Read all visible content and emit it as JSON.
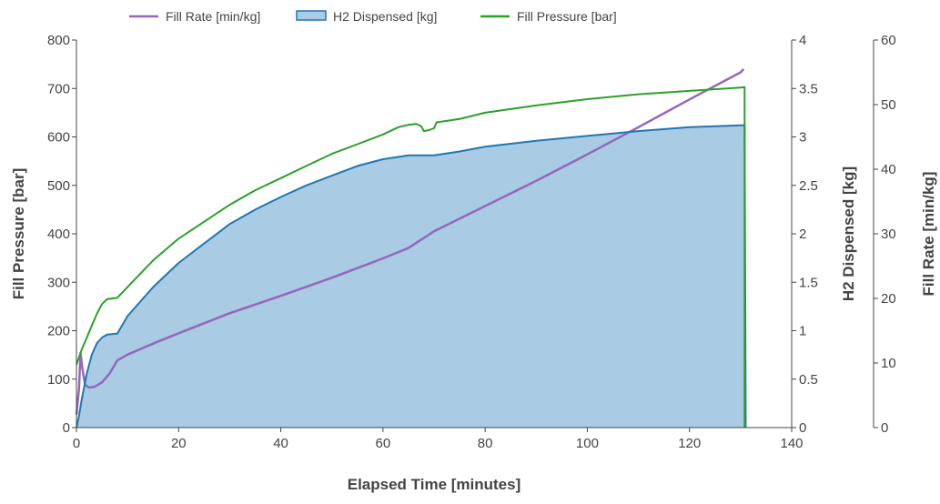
{
  "chart_data": {
    "type": "line",
    "title": "",
    "xlabel": "Elapsed Time [minutes]",
    "x_range": [
      0,
      140
    ],
    "x_ticks": [
      "0",
      "20",
      "40",
      "60",
      "80",
      "100",
      "120",
      "140"
    ],
    "x_tick_values": [
      0,
      20,
      40,
      60,
      80,
      100,
      120,
      140
    ],
    "grid": false,
    "legend_placement": "top",
    "axes": {
      "fill_pressure": {
        "label": "Fill Pressure [bar]",
        "side": "left",
        "range": [
          0,
          800
        ],
        "ticks": [
          "0",
          "100",
          "200",
          "300",
          "400",
          "500",
          "600",
          "700",
          "800"
        ],
        "tick_values": [
          0,
          100,
          200,
          300,
          400,
          500,
          600,
          700,
          800
        ]
      },
      "h2_dispensed": {
        "label": "H2 Dispensed [kg]",
        "side": "right",
        "range": [
          0,
          4
        ],
        "ticks": [
          "0",
          "0.5",
          "1",
          "1.5",
          "2",
          "2.5",
          "3",
          "3.5",
          "4"
        ],
        "tick_values": [
          0,
          0.5,
          1,
          1.5,
          2,
          2.5,
          3,
          3.5,
          4
        ]
      },
      "fill_rate": {
        "label": "Fill Rate [min/kg]",
        "side": "right-outer",
        "range": [
          0,
          60
        ],
        "ticks": [
          "0",
          "10",
          "20",
          "30",
          "40",
          "50",
          "60"
        ],
        "tick_values": [
          0,
          10,
          20,
          30,
          40,
          50,
          60
        ]
      }
    },
    "series": [
      {
        "name": "Fill Rate [min/kg]",
        "axis": "fill_rate",
        "style": "line",
        "color": "#9467bd",
        "points": [
          [
            0,
            2
          ],
          [
            0.5,
            6
          ],
          [
            0.8,
            11.5
          ],
          [
            1.2,
            9
          ],
          [
            1.7,
            6.6
          ],
          [
            2.5,
            6.2
          ],
          [
            3.5,
            6.3
          ],
          [
            5,
            7
          ],
          [
            6.5,
            8.4
          ],
          [
            8,
            10.4
          ],
          [
            10,
            11.3
          ],
          [
            15,
            13
          ],
          [
            20,
            14.6
          ],
          [
            30,
            17.7
          ],
          [
            40,
            20.4
          ],
          [
            50,
            23.2
          ],
          [
            60,
            26.2
          ],
          [
            65,
            27.8
          ],
          [
            70,
            30.4
          ],
          [
            80,
            34.3
          ],
          [
            90,
            38.2
          ],
          [
            100,
            42.3
          ],
          [
            110,
            46.5
          ],
          [
            120,
            50.8
          ],
          [
            130,
            55
          ],
          [
            130.6,
            55.5
          ]
        ]
      },
      {
        "name": "H2 Dispensed [kg]",
        "axis": "h2_dispensed",
        "style": "area",
        "color": "#1f77b4",
        "fill": "#a9cbe4",
        "points": [
          [
            0,
            0
          ],
          [
            0.5,
            0.12
          ],
          [
            1,
            0.28
          ],
          [
            2,
            0.55
          ],
          [
            3,
            0.75
          ],
          [
            4,
            0.87
          ],
          [
            5,
            0.93
          ],
          [
            6,
            0.96
          ],
          [
            8,
            0.97
          ],
          [
            10,
            1.15
          ],
          [
            15,
            1.45
          ],
          [
            20,
            1.7
          ],
          [
            25,
            1.9
          ],
          [
            30,
            2.1
          ],
          [
            35,
            2.25
          ],
          [
            40,
            2.38
          ],
          [
            45,
            2.5
          ],
          [
            50,
            2.6
          ],
          [
            55,
            2.7
          ],
          [
            60,
            2.77
          ],
          [
            65,
            2.81
          ],
          [
            68,
            2.81
          ],
          [
            70,
            2.81
          ],
          [
            75,
            2.85
          ],
          [
            80,
            2.9
          ],
          [
            90,
            2.96
          ],
          [
            100,
            3.01
          ],
          [
            110,
            3.06
          ],
          [
            120,
            3.1
          ],
          [
            130,
            3.12
          ],
          [
            130.8,
            3.12
          ],
          [
            131,
            0
          ]
        ]
      },
      {
        "name": "Fill Pressure [bar]",
        "axis": "fill_pressure",
        "style": "line",
        "color": "#2ca02c",
        "points": [
          [
            0,
            130
          ],
          [
            0.5,
            145
          ],
          [
            1,
            160
          ],
          [
            2,
            185
          ],
          [
            3,
            210
          ],
          [
            4,
            235
          ],
          [
            5,
            255
          ],
          [
            6,
            265
          ],
          [
            8,
            268
          ],
          [
            10,
            290
          ],
          [
            15,
            345
          ],
          [
            20,
            390
          ],
          [
            25,
            425
          ],
          [
            30,
            460
          ],
          [
            35,
            490
          ],
          [
            40,
            515
          ],
          [
            45,
            540
          ],
          [
            50,
            565
          ],
          [
            55,
            585
          ],
          [
            60,
            605
          ],
          [
            63,
            620
          ],
          [
            65,
            625
          ],
          [
            66.5,
            627
          ],
          [
            67.5,
            622
          ],
          [
            68,
            612
          ],
          [
            69,
            614
          ],
          [
            70,
            618
          ],
          [
            70.5,
            630
          ],
          [
            75,
            637
          ],
          [
            80,
            650
          ],
          [
            90,
            665
          ],
          [
            100,
            678
          ],
          [
            110,
            688
          ],
          [
            120,
            695
          ],
          [
            130,
            702
          ],
          [
            130.8,
            703
          ],
          [
            130.8,
            0
          ]
        ]
      }
    ]
  }
}
